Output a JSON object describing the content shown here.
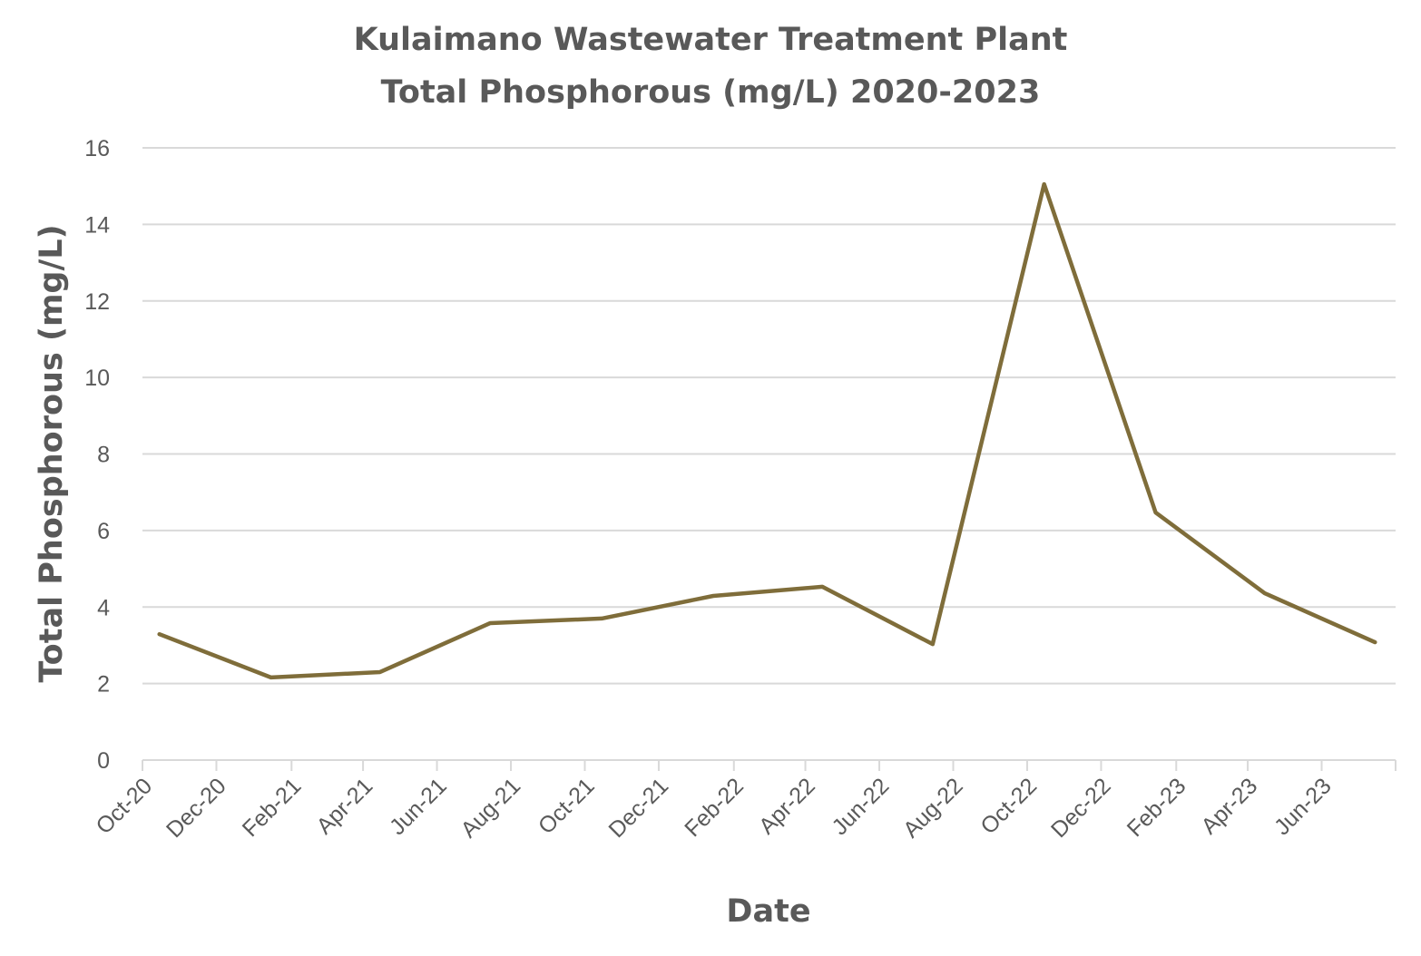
{
  "chart_data": {
    "type": "line",
    "title": [
      "Kulaimano Wastewater Treatment Plant",
      "Total Phosphorous (mg/L) 2020-2023"
    ],
    "xlabel": "Date",
    "ylabel": "Total Phosphorous (mg/L)",
    "ylim": [
      0,
      16
    ],
    "yticks": [
      "0",
      "2",
      "4",
      "6",
      "8",
      "10",
      "12",
      "14",
      "16"
    ],
    "xlim": [
      "2020-10-01",
      "2023-08-01"
    ],
    "xtick_labels": [
      "Oct-20",
      "Dec-20",
      "Feb-21",
      "Apr-21",
      "Jun-21",
      "Aug-21",
      "Oct-21",
      "Dec-21",
      "Feb-22",
      "Apr-22",
      "Jun-22",
      "Aug-22",
      "Oct-22",
      "Dec-22",
      "Feb-23",
      "Apr-23",
      "Jun-23"
    ],
    "grid": "horizontal",
    "legend": "none",
    "line_color": "#7f6d3a",
    "x": [
      "2020-10-15",
      "2021-01-15",
      "2021-04-15",
      "2021-07-15",
      "2021-10-15",
      "2022-01-15",
      "2022-04-15",
      "2022-07-15",
      "2022-10-15",
      "2023-01-15",
      "2023-04-15",
      "2023-07-15"
    ],
    "values": [
      3.29,
      2.16,
      2.3,
      3.58,
      3.7,
      4.29,
      4.53,
      3.03,
      15.05,
      6.47,
      4.36,
      3.08
    ]
  }
}
